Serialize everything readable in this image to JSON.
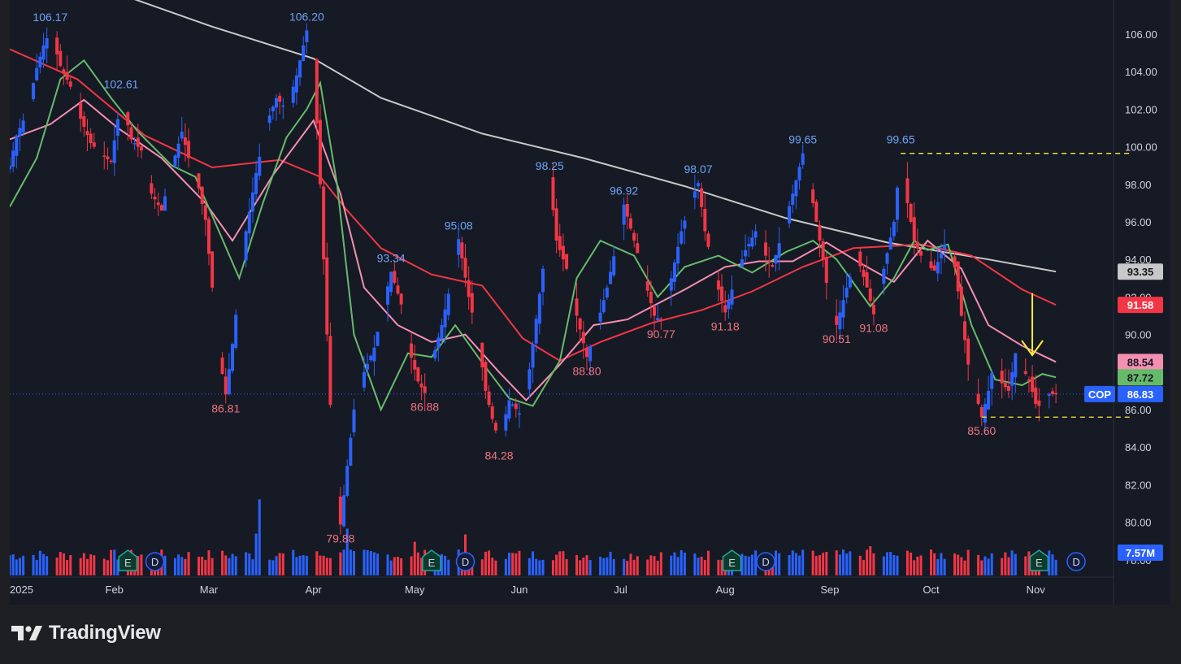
{
  "brand": {
    "name": "TradingView",
    "logo_icon": "tradingview-logo-icon"
  },
  "chart_data": {
    "type": "candlestick",
    "symbol": "COP",
    "y_range": [
      78.0,
      107.5
    ],
    "y_ticks": [
      "106.00",
      "104.00",
      "102.00",
      "100.00",
      "98.00",
      "96.00",
      "94.00",
      "92.00",
      "90.00",
      "88.00",
      "86.00",
      "84.00",
      "82.00",
      "80.00",
      "78.00"
    ],
    "x_labels": [
      {
        "label": "2025",
        "day": 0
      },
      {
        "label": "Feb",
        "day": 31
      },
      {
        "label": "Mar",
        "day": 59
      },
      {
        "label": "Apr",
        "day": 90
      },
      {
        "label": "May",
        "day": 120
      },
      {
        "label": "Jun",
        "day": 151
      },
      {
        "label": "Jul",
        "day": 181
      },
      {
        "label": "Aug",
        "day": 212
      },
      {
        "label": "Sep",
        "day": 243
      },
      {
        "label": "Oct",
        "day": 273
      },
      {
        "label": "Nov",
        "day": 304
      }
    ],
    "last_day": 310,
    "price_path": [
      [
        0,
        99.0
      ],
      [
        2,
        100.6
      ],
      [
        5,
        101.8
      ],
      [
        8,
        104.2
      ],
      [
        10,
        105.4
      ],
      [
        12,
        106.17
      ],
      [
        15,
        104.3
      ],
      [
        18,
        103.2
      ],
      [
        21,
        101.5
      ],
      [
        24,
        100.2
      ],
      [
        27,
        99.6
      ],
      [
        30,
        99.2
      ],
      [
        33,
        102.61
      ],
      [
        36,
        100.4
      ],
      [
        39,
        99.8
      ],
      [
        42,
        97.5
      ],
      [
        45,
        96.6
      ],
      [
        48,
        98.9
      ],
      [
        51,
        100.8
      ],
      [
        53,
        99.4
      ],
      [
        56,
        97.8
      ],
      [
        58,
        96.1
      ],
      [
        60,
        92.5
      ],
      [
        62,
        89.0
      ],
      [
        64,
        86.81
      ],
      [
        66,
        89.5
      ],
      [
        68,
        92.6
      ],
      [
        70,
        95.5
      ],
      [
        73,
        98.6
      ],
      [
        76,
        101.2
      ],
      [
        79,
        102.6
      ],
      [
        82,
        102.0
      ],
      [
        85,
        103.8
      ],
      [
        88,
        106.2
      ],
      [
        90,
        104.5
      ],
      [
        92,
        98.0
      ],
      [
        94,
        90.0
      ],
      [
        96,
        82.5
      ],
      [
        98,
        79.88
      ],
      [
        100,
        83.0
      ],
      [
        102,
        86.0
      ],
      [
        105,
        88.0
      ],
      [
        108,
        89.3
      ],
      [
        110,
        91.0
      ],
      [
        113,
        93.34
      ],
      [
        116,
        91.6
      ],
      [
        118,
        89.4
      ],
      [
        121,
        87.5
      ],
      [
        123,
        86.88
      ],
      [
        125,
        88.5
      ],
      [
        128,
        90.5
      ],
      [
        131,
        93.0
      ],
      [
        133,
        95.08
      ],
      [
        136,
        92.0
      ],
      [
        139,
        89.5
      ],
      [
        141,
        87.0
      ],
      [
        143,
        85.5
      ],
      [
        145,
        84.28
      ],
      [
        148,
        86.5
      ],
      [
        151,
        85.8
      ],
      [
        153,
        86.8
      ],
      [
        155,
        89.5
      ],
      [
        158,
        93.5
      ],
      [
        160,
        98.25
      ],
      [
        162,
        95.0
      ],
      [
        165,
        93.5
      ],
      [
        168,
        91.0
      ],
      [
        171,
        88.8
      ],
      [
        174,
        90.5
      ],
      [
        177,
        92.5
      ],
      [
        180,
        95.0
      ],
      [
        182,
        96.92
      ],
      [
        185,
        95.0
      ],
      [
        188,
        93.0
      ],
      [
        191,
        91.0
      ],
      [
        193,
        90.77
      ],
      [
        196,
        93.0
      ],
      [
        199,
        95.5
      ],
      [
        202,
        97.2
      ],
      [
        204,
        98.07
      ],
      [
        206,
        95.5
      ],
      [
        209,
        93.0
      ],
      [
        212,
        91.18
      ],
      [
        215,
        93.0
      ],
      [
        218,
        94.5
      ],
      [
        221,
        95.5
      ],
      [
        224,
        94.2
      ],
      [
        226,
        93.6
      ],
      [
        229,
        95.5
      ],
      [
        232,
        97.5
      ],
      [
        235,
        99.65
      ],
      [
        238,
        97.0
      ],
      [
        241,
        94.0
      ],
      [
        243,
        91.5
      ],
      [
        245,
        90.51
      ],
      [
        248,
        92.5
      ],
      [
        251,
        94.2
      ],
      [
        254,
        92.5
      ],
      [
        256,
        91.08
      ],
      [
        259,
        93.5
      ],
      [
        262,
        96.0
      ],
      [
        264,
        99.65
      ],
      [
        266,
        97.0
      ],
      [
        268,
        95.0
      ],
      [
        271,
        93.8
      ],
      [
        274,
        93.4
      ],
      [
        277,
        94.8
      ],
      [
        280,
        93.6
      ],
      [
        282,
        91.0
      ],
      [
        284,
        88.4
      ],
      [
        286,
        87.0
      ],
      [
        288,
        85.6
      ],
      [
        290,
        87.0
      ],
      [
        292,
        88.9
      ],
      [
        294,
        87.4
      ],
      [
        296,
        87.0
      ],
      [
        298,
        89.0
      ],
      [
        300,
        88.2
      ],
      [
        302,
        87.6
      ],
      [
        304,
        86.3
      ],
      [
        306,
        86.1
      ],
      [
        308,
        86.83
      ],
      [
        310,
        86.83
      ]
    ],
    "annotations": [
      {
        "text": "106.17",
        "day": 12,
        "price": 106.17,
        "kind": "high"
      },
      {
        "text": "102.61",
        "day": 33,
        "price": 102.61,
        "kind": "high"
      },
      {
        "text": "106.20",
        "day": 88,
        "price": 106.2,
        "kind": "high"
      },
      {
        "text": "93.34",
        "day": 113,
        "price": 93.34,
        "kind": "high"
      },
      {
        "text": "95.08",
        "day": 133,
        "price": 95.08,
        "kind": "high"
      },
      {
        "text": "98.25",
        "day": 160,
        "price": 98.25,
        "kind": "high"
      },
      {
        "text": "96.92",
        "day": 182,
        "price": 96.92,
        "kind": "high"
      },
      {
        "text": "98.07",
        "day": 204,
        "price": 98.07,
        "kind": "high"
      },
      {
        "text": "99.65",
        "day": 235,
        "price": 99.65,
        "kind": "high"
      },
      {
        "text": "99.65",
        "day": 264,
        "price": 99.65,
        "kind": "high"
      },
      {
        "text": "86.81",
        "day": 64,
        "price": 86.81,
        "kind": "low"
      },
      {
        "text": "79.88",
        "day": 98,
        "price": 79.88,
        "kind": "low"
      },
      {
        "text": "86.88",
        "day": 123,
        "price": 86.88,
        "kind": "low"
      },
      {
        "text": "84.28",
        "day": 145,
        "price": 84.28,
        "kind": "low"
      },
      {
        "text": "88.80",
        "day": 171,
        "price": 88.8,
        "kind": "low"
      },
      {
        "text": "90.77",
        "day": 193,
        "price": 90.77,
        "kind": "low"
      },
      {
        "text": "91.18",
        "day": 212,
        "price": 91.18,
        "kind": "low"
      },
      {
        "text": "90.51",
        "day": 245,
        "price": 90.51,
        "kind": "low"
      },
      {
        "text": "91.08",
        "day": 256,
        "price": 91.08,
        "kind": "low"
      },
      {
        "text": "85.60",
        "day": 288,
        "price": 85.6,
        "kind": "low"
      }
    ],
    "moving_averages": [
      {
        "color": "#c8c8c8",
        "points": [
          [
            0,
            109.5
          ],
          [
            30,
            108.3
          ],
          [
            60,
            106.4
          ],
          [
            90,
            104.7
          ],
          [
            110,
            102.6
          ],
          [
            140,
            100.7
          ],
          [
            170,
            99.4
          ],
          [
            200,
            97.9
          ],
          [
            230,
            96.2
          ],
          [
            260,
            94.9
          ],
          [
            290,
            94.0
          ],
          [
            310,
            93.35
          ]
        ]
      },
      {
        "color": "#f23645",
        "points": [
          [
            0,
            105.2
          ],
          [
            20,
            103.6
          ],
          [
            40,
            100.6
          ],
          [
            60,
            98.9
          ],
          [
            80,
            99.3
          ],
          [
            92,
            98.4
          ],
          [
            100,
            96.6
          ],
          [
            110,
            94.6
          ],
          [
            125,
            93.2
          ],
          [
            140,
            92.6
          ],
          [
            152,
            89.8
          ],
          [
            163,
            88.6
          ],
          [
            175,
            89.6
          ],
          [
            190,
            90.6
          ],
          [
            205,
            91.3
          ],
          [
            220,
            92.3
          ],
          [
            235,
            93.6
          ],
          [
            250,
            94.6
          ],
          [
            270,
            94.8
          ],
          [
            285,
            94.2
          ],
          [
            300,
            92.4
          ],
          [
            310,
            91.58
          ]
        ]
      },
      {
        "color": "#f48fb1",
        "points": [
          [
            0,
            100.4
          ],
          [
            12,
            101.2
          ],
          [
            22,
            102.5
          ],
          [
            32,
            101.0
          ],
          [
            45,
            99.4
          ],
          [
            58,
            97.0
          ],
          [
            66,
            95.0
          ],
          [
            78,
            98.5
          ],
          [
            90,
            101.4
          ],
          [
            98,
            97.5
          ],
          [
            105,
            92.5
          ],
          [
            115,
            90.5
          ],
          [
            125,
            89.6
          ],
          [
            135,
            90.0
          ],
          [
            145,
            88.0
          ],
          [
            153,
            86.5
          ],
          [
            163,
            88.4
          ],
          [
            173,
            90.5
          ],
          [
            183,
            90.8
          ],
          [
            200,
            92.4
          ],
          [
            212,
            93.6
          ],
          [
            222,
            93.9
          ],
          [
            232,
            93.9
          ],
          [
            242,
            94.9
          ],
          [
            252,
            93.8
          ],
          [
            262,
            92.8
          ],
          [
            272,
            95.0
          ],
          [
            282,
            93.5
          ],
          [
            290,
            90.5
          ],
          [
            300,
            89.4
          ],
          [
            310,
            88.54
          ]
        ]
      },
      {
        "color": "#66bb6a",
        "points": [
          [
            0,
            96.8
          ],
          [
            8,
            99.4
          ],
          [
            15,
            103.6
          ],
          [
            22,
            104.6
          ],
          [
            30,
            102.6
          ],
          [
            38,
            100.8
          ],
          [
            48,
            99.0
          ],
          [
            55,
            98.4
          ],
          [
            62,
            95.5
          ],
          [
            68,
            93.0
          ],
          [
            75,
            97.0
          ],
          [
            82,
            100.5
          ],
          [
            88,
            102.0
          ],
          [
            92,
            103.4
          ],
          [
            97,
            98.0
          ],
          [
            102,
            90.0
          ],
          [
            110,
            86.0
          ],
          [
            118,
            89.0
          ],
          [
            125,
            88.8
          ],
          [
            132,
            90.5
          ],
          [
            140,
            88.5
          ],
          [
            148,
            86.6
          ],
          [
            155,
            86.2
          ],
          [
            163,
            88.6
          ],
          [
            168,
            93.0
          ],
          [
            175,
            95.0
          ],
          [
            185,
            94.2
          ],
          [
            192,
            92.0
          ],
          [
            200,
            93.6
          ],
          [
            210,
            94.2
          ],
          [
            220,
            93.3
          ],
          [
            230,
            94.4
          ],
          [
            238,
            95.0
          ],
          [
            245,
            94.0
          ],
          [
            255,
            91.5
          ],
          [
            262,
            93.0
          ],
          [
            268,
            95.0
          ],
          [
            272,
            94.5
          ],
          [
            278,
            94.8
          ],
          [
            285,
            90.5
          ],
          [
            292,
            87.6
          ],
          [
            300,
            87.3
          ],
          [
            306,
            87.9
          ],
          [
            310,
            87.72
          ]
        ]
      }
    ],
    "volume_spikes": [
      [
        74,
        5.2
      ],
      [
        100,
        3.2
      ],
      [
        120,
        2.3
      ],
      [
        135,
        2.8
      ],
      [
        160,
        1.9
      ],
      [
        180,
        1.8
      ],
      [
        255,
        2.0
      ],
      [
        280,
        1.5
      ],
      [
        303,
        1.2
      ]
    ],
    "event_markers": [
      {
        "day": 35,
        "letter": "E",
        "name": "earnings-marker"
      },
      {
        "day": 43,
        "letter": "D",
        "name": "dividend-marker"
      },
      {
        "day": 125,
        "letter": "E",
        "name": "earnings-marker"
      },
      {
        "day": 135,
        "letter": "D",
        "name": "dividend-marker"
      },
      {
        "day": 214,
        "letter": "E",
        "name": "earnings-marker"
      },
      {
        "day": 224,
        "letter": "D",
        "name": "dividend-marker"
      },
      {
        "day": 305,
        "letter": "E",
        "name": "earnings-marker"
      },
      {
        "day": 316,
        "letter": "D",
        "name": "dividend-marker"
      }
    ],
    "price_tags": [
      {
        "text": "93.35",
        "price": 93.35,
        "bg": "#c8c8c8",
        "fg": "#131722"
      },
      {
        "text": "91.58",
        "price": 91.58,
        "bg": "#f23645",
        "fg": "#ffffff"
      },
      {
        "text": "88.54",
        "price": 88.54,
        "bg": "#f48fb1",
        "fg": "#131722"
      },
      {
        "text": "87.72",
        "price": 87.72,
        "bg": "#66bb6a",
        "fg": "#131722"
      },
      {
        "text": "86.83",
        "price": 86.83,
        "bg": "#2962ff",
        "fg": "#ffffff"
      }
    ],
    "symbol_tag": {
      "text": "COP",
      "price": 86.83,
      "bg": "#2962ff",
      "fg": "#ffffff"
    },
    "volume_tag": {
      "text": "7.57M",
      "bg": "#2962ff",
      "fg": "#ffffff"
    },
    "current_price": 86.83,
    "resistance_line": {
      "price": 99.65,
      "from_day": 264,
      "to_day": 332
    },
    "support_line": {
      "price": 85.6,
      "from_day": 288,
      "to_day": 332
    },
    "arrow": {
      "day": 303,
      "from_price": 92.2,
      "to_price": 88.9,
      "color": "#ffeb3b"
    },
    "colors": {
      "up": "#2962ff",
      "down": "#f23645",
      "high_text": "#6ea3f7",
      "low_text": "#f2737f",
      "background": "#161a25"
    }
  }
}
